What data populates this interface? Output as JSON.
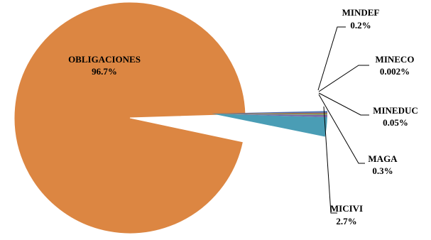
{
  "chart_data": {
    "type": "pie",
    "title": "",
    "slices": [
      {
        "label": "OBLIGACIONES",
        "value_text": "96.7%",
        "value": 96.7,
        "color": "#DC8642"
      },
      {
        "label": "MICIVI",
        "value_text": "2.7%",
        "value": 2.7,
        "color": "#4A9DB5"
      },
      {
        "label": "MAGA",
        "value_text": "0.3%",
        "value": 0.3,
        "color": "#7B69A6"
      },
      {
        "label": "MINEDUC",
        "value_text": "0.05%",
        "value": 0.05,
        "color": "#8AAE54"
      },
      {
        "label": "MINECO",
        "value_text": "0.002%",
        "value": 0.002,
        "color": "#A04A45"
      },
      {
        "label": "MINDEF",
        "value_text": "0.2%",
        "value": 0.2,
        "color": "#4A72B3"
      }
    ],
    "exploded_groups": [
      "MICIVI",
      "MAGA",
      "MINEDUC",
      "MINECO",
      "MINDEF"
    ],
    "legend": "none"
  }
}
